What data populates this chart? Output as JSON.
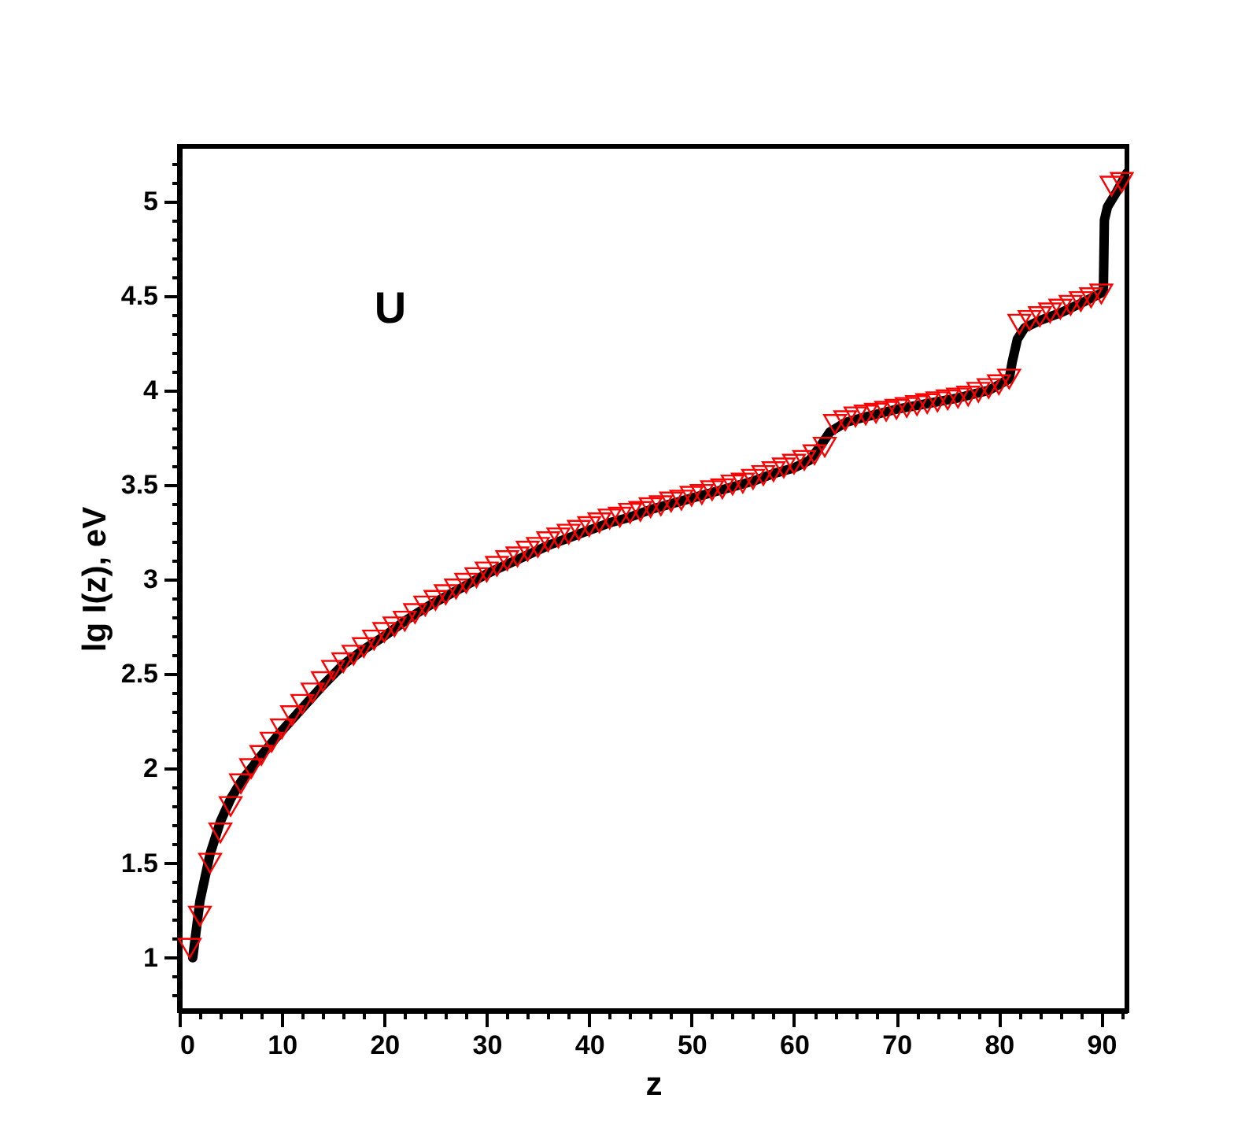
{
  "chart_data": {
    "type": "scatter",
    "xlabel": "z",
    "ylabel": "lg I(z), eV",
    "annotations": [
      "U"
    ],
    "xlim": [
      0,
      92.5
    ],
    "ylim": [
      0.72,
      5.29
    ],
    "xticks": [
      0,
      {
        "value": 2,
        "label": null
      },
      {
        "value": 4,
        "label": null
      },
      {
        "value": 6,
        "label": null
      },
      {
        "value": 8,
        "label": null
      },
      10,
      {
        "value": 12,
        "label": null
      },
      {
        "value": 14,
        "label": null
      },
      {
        "value": 16,
        "label": null
      },
      {
        "value": 18,
        "label": null
      },
      20,
      {
        "value": 22,
        "label": null
      },
      {
        "value": 24,
        "label": null
      },
      {
        "value": 26,
        "label": null
      },
      {
        "value": 28,
        "label": null
      },
      30,
      {
        "value": 32,
        "label": null
      },
      {
        "value": 34,
        "label": null
      },
      {
        "value": 36,
        "label": null
      },
      {
        "value": 38,
        "label": null
      },
      40,
      {
        "value": 42,
        "label": null
      },
      {
        "value": 44,
        "label": null
      },
      {
        "value": 46,
        "label": null
      },
      {
        "value": 48,
        "label": null
      },
      50,
      {
        "value": 52,
        "label": null
      },
      {
        "value": 54,
        "label": null
      },
      {
        "value": 56,
        "label": null
      },
      {
        "value": 58,
        "label": null
      },
      60,
      {
        "value": 62,
        "label": null
      },
      {
        "value": 64,
        "label": null
      },
      {
        "value": 66,
        "label": null
      },
      {
        "value": 68,
        "label": null
      },
      70,
      {
        "value": 72,
        "label": null
      },
      {
        "value": 74,
        "label": null
      },
      {
        "value": 76,
        "label": null
      },
      {
        "value": 78,
        "label": null
      },
      80,
      {
        "value": 82,
        "label": null
      },
      {
        "value": 84,
        "label": null
      },
      {
        "value": 86,
        "label": null
      },
      {
        "value": 88,
        "label": null
      },
      90,
      {
        "value": 92,
        "label": null
      }
    ],
    "yticks": [
      {
        "value": 0.8,
        "label": null
      },
      {
        "value": 0.9,
        "label": null
      },
      1,
      {
        "value": 1.1,
        "label": null
      },
      {
        "value": 1.2,
        "label": null
      },
      {
        "value": 1.3,
        "label": null
      },
      {
        "value": 1.4,
        "label": null
      },
      1.5,
      {
        "value": 1.6,
        "label": null
      },
      {
        "value": 1.7,
        "label": null
      },
      {
        "value": 1.8,
        "label": null
      },
      {
        "value": 1.9,
        "label": null
      },
      2,
      {
        "value": 2.1,
        "label": null
      },
      {
        "value": 2.2,
        "label": null
      },
      {
        "value": 2.3,
        "label": null
      },
      {
        "value": 2.4,
        "label": null
      },
      2.5,
      {
        "value": 2.6,
        "label": null
      },
      {
        "value": 2.7,
        "label": null
      },
      {
        "value": 2.8,
        "label": null
      },
      {
        "value": 2.9,
        "label": null
      },
      3,
      {
        "value": 3.1,
        "label": null
      },
      {
        "value": 3.2,
        "label": null
      },
      {
        "value": 3.3,
        "label": null
      },
      {
        "value": 3.4,
        "label": null
      },
      3.5,
      {
        "value": 3.6,
        "label": null
      },
      {
        "value": 3.7,
        "label": null
      },
      {
        "value": 3.8,
        "label": null
      },
      {
        "value": 3.9,
        "label": null
      },
      4,
      {
        "value": 4.1,
        "label": null
      },
      {
        "value": 4.2,
        "label": null
      },
      {
        "value": 4.3,
        "label": null
      },
      {
        "value": 4.4,
        "label": null
      },
      4.5,
      {
        "value": 4.6,
        "label": null
      },
      {
        "value": 4.7,
        "label": null
      },
      {
        "value": 4.8,
        "label": null
      },
      {
        "value": 4.9,
        "label": null
      },
      5,
      {
        "value": 5.1,
        "label": null
      },
      {
        "value": 5.2,
        "label": null
      }
    ],
    "grid": false,
    "series": [
      {
        "type": "line",
        "color": "#000000",
        "marker": "none",
        "line_style": "solid",
        "x": [
          1.3,
          2,
          3,
          4,
          5,
          6,
          8,
          10,
          12,
          14,
          16,
          18,
          20,
          22,
          24,
          26,
          28,
          30,
          32,
          34,
          36,
          38,
          40,
          42,
          44,
          46,
          48,
          50,
          52,
          54,
          56,
          58,
          60,
          61.5,
          62.5,
          63.5,
          65,
          67,
          70,
          73,
          76,
          79,
          81,
          81.3,
          81.8,
          82.5,
          84,
          86,
          88,
          90.2,
          90.3,
          90.6,
          91.5,
          92.5
        ],
        "values": [
          1.0,
          1.3,
          1.55,
          1.72,
          1.84,
          1.93,
          2.07,
          2.2,
          2.32,
          2.44,
          2.55,
          2.63,
          2.7,
          2.78,
          2.85,
          2.91,
          2.97,
          3.03,
          3.08,
          3.13,
          3.18,
          3.22,
          3.26,
          3.3,
          3.33,
          3.37,
          3.4,
          3.43,
          3.46,
          3.49,
          3.52,
          3.56,
          3.59,
          3.63,
          3.7,
          3.78,
          3.83,
          3.86,
          3.9,
          3.93,
          3.96,
          4.0,
          4.06,
          4.15,
          4.27,
          4.33,
          4.37,
          4.41,
          4.46,
          4.52,
          4.9,
          4.97,
          5.05,
          5.15
        ]
      },
      {
        "color": "#ff0000",
        "marker": "triangle",
        "x": [
          1,
          2,
          3,
          4,
          5,
          6,
          7,
          8,
          9,
          10,
          11,
          12,
          13,
          14,
          15,
          16,
          17,
          18,
          19,
          20,
          21,
          22,
          23,
          24,
          25,
          26,
          27,
          28,
          29,
          30,
          31,
          32,
          33,
          34,
          35,
          36,
          37,
          38,
          39,
          40,
          41,
          42,
          43,
          44,
          45,
          46,
          47,
          48,
          49,
          50,
          51,
          52,
          53,
          54,
          55,
          56,
          57,
          58,
          59,
          60,
          61,
          62,
          63,
          64,
          65,
          66,
          67,
          68,
          69,
          70,
          71,
          72,
          73,
          74,
          75,
          76,
          77,
          78,
          79,
          80,
          81,
          82,
          83,
          84,
          85,
          86,
          87,
          88,
          89,
          90,
          91,
          92
        ],
        "values": [
          1.05,
          1.22,
          1.5,
          1.66,
          1.8,
          1.92,
          2.0,
          2.07,
          2.14,
          2.21,
          2.28,
          2.34,
          2.4,
          2.46,
          2.52,
          2.56,
          2.6,
          2.64,
          2.68,
          2.72,
          2.75,
          2.78,
          2.82,
          2.86,
          2.89,
          2.92,
          2.95,
          2.98,
          3.01,
          3.04,
          3.07,
          3.1,
          3.12,
          3.15,
          3.17,
          3.2,
          3.22,
          3.24,
          3.26,
          3.28,
          3.3,
          3.32,
          3.33,
          3.35,
          3.36,
          3.38,
          3.39,
          3.41,
          3.42,
          3.44,
          3.45,
          3.47,
          3.48,
          3.5,
          3.51,
          3.53,
          3.55,
          3.57,
          3.59,
          3.61,
          3.63,
          3.66,
          3.7,
          3.82,
          3.84,
          3.86,
          3.87,
          3.88,
          3.89,
          3.9,
          3.91,
          3.92,
          3.93,
          3.94,
          3.95,
          3.96,
          3.97,
          3.99,
          4.01,
          4.03,
          4.06,
          4.35,
          4.37,
          4.39,
          4.41,
          4.43,
          4.45,
          4.47,
          4.49,
          4.51,
          5.08,
          5.1
        ]
      }
    ]
  }
}
